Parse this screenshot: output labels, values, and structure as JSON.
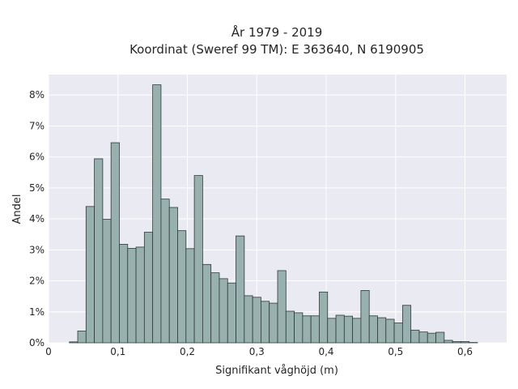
{
  "chart_data": {
    "type": "bar",
    "title": "År 1979 - 2019",
    "subtitle": "Koordinat (Sweref 99 TM): E 363640, N 6190905",
    "xlabel": "Signifikant våghöjd (m)",
    "ylabel": "Andel",
    "xlim": [
      0,
      0.66
    ],
    "ylim": [
      0,
      0.0866
    ],
    "x_ticks": [
      {
        "value": 0,
        "label": "0"
      },
      {
        "value": 0.1,
        "label": "0,1"
      },
      {
        "value": 0.2,
        "label": "0,2"
      },
      {
        "value": 0.3,
        "label": "0,3"
      },
      {
        "value": 0.4,
        "label": "0,4"
      },
      {
        "value": 0.5,
        "label": "0,5"
      },
      {
        "value": 0.6,
        "label": "0,6"
      }
    ],
    "y_ticks": [
      {
        "value": 0,
        "label": "0%"
      },
      {
        "value": 0.01,
        "label": "1%"
      },
      {
        "value": 0.02,
        "label": "2%"
      },
      {
        "value": 0.03,
        "label": "3%"
      },
      {
        "value": 0.04,
        "label": "4%"
      },
      {
        "value": 0.05,
        "label": "5%"
      },
      {
        "value": 0.06,
        "label": "6%"
      },
      {
        "value": 0.07,
        "label": "7%"
      },
      {
        "value": 0.08,
        "label": "8%"
      }
    ],
    "bin_start": 0.03,
    "bin_width": 0.012,
    "values": [
      0.0003,
      0.0038,
      0.044,
      0.0594,
      0.0399,
      0.0646,
      0.0318,
      0.0305,
      0.0309,
      0.0357,
      0.0833,
      0.0464,
      0.0437,
      0.0362,
      0.0304,
      0.054,
      0.0253,
      0.0226,
      0.0207,
      0.0193,
      0.0345,
      0.0152,
      0.0147,
      0.0134,
      0.0128,
      0.0233,
      0.0102,
      0.0097,
      0.0087,
      0.0087,
      0.0164,
      0.0079,
      0.0089,
      0.0086,
      0.0079,
      0.0169,
      0.0087,
      0.0081,
      0.0076,
      0.0064,
      0.0121,
      0.0041,
      0.0035,
      0.0031,
      0.0034,
      0.0008,
      0.0004,
      0.0004,
      0.0001
    ],
    "grid": true,
    "legend": "none",
    "colors": {
      "bar_fill": "#98b0ae",
      "bar_edge": "#2e3b39",
      "plot_background": "#eaeaf2",
      "grid": "#ffffff"
    }
  }
}
